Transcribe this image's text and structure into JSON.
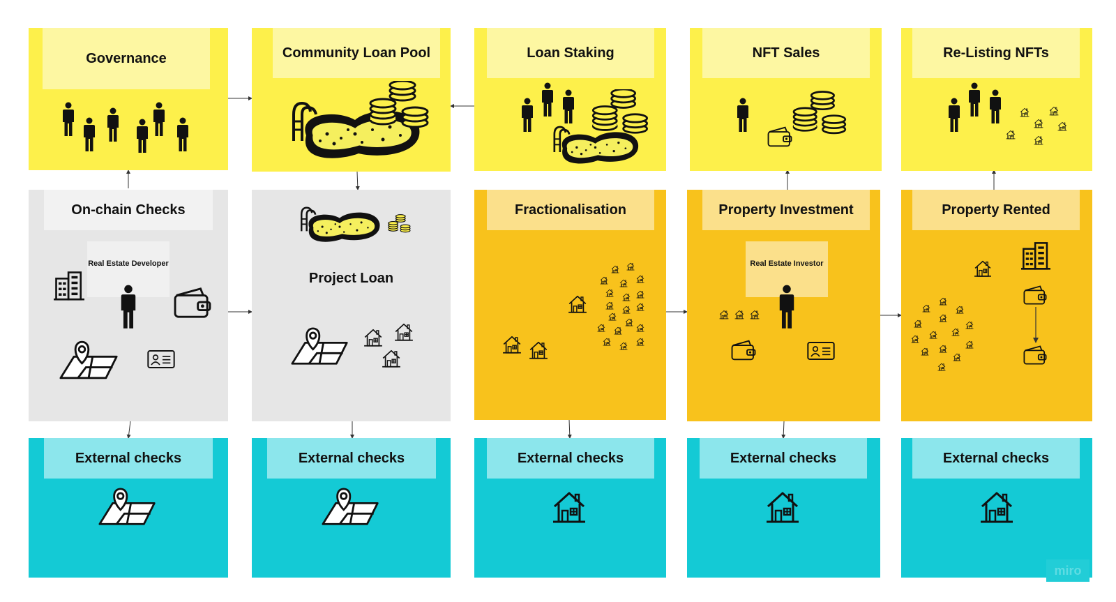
{
  "cards": {
    "governance": {
      "title": "Governance"
    },
    "community_loan_pool": {
      "title": "Community Loan Pool"
    },
    "loan_staking": {
      "title": "Loan Staking"
    },
    "nft_sales": {
      "title": "NFT Sales"
    },
    "relisting_nfts": {
      "title": "Re-Listing NFTs"
    },
    "onchain_checks": {
      "title": "On-chain Checks",
      "role": "Real Estate Developer"
    },
    "project_loan": {
      "title": "Project Loan"
    },
    "fractionalisation": {
      "title": "Fractionalisation"
    },
    "property_investment": {
      "title": "Property Investment",
      "role": "Real Estate Investor"
    },
    "property_rented": {
      "title": "Property Rented"
    },
    "external_1": {
      "title": "External checks"
    },
    "external_2": {
      "title": "External checks"
    },
    "external_3": {
      "title": "External checks"
    },
    "external_4": {
      "title": "External checks"
    },
    "external_5": {
      "title": "External checks"
    }
  },
  "icons": [
    "person-icon",
    "pool-icon",
    "coins-icon",
    "wallet-icon",
    "building-icon",
    "house-icon",
    "map-pin-icon",
    "id-card-icon"
  ],
  "colors": {
    "yellow": "#fdf04b",
    "grey": "#e6e6e6",
    "orange": "#f8c21c",
    "cyan": "#14cad5"
  },
  "watermark": "miro"
}
